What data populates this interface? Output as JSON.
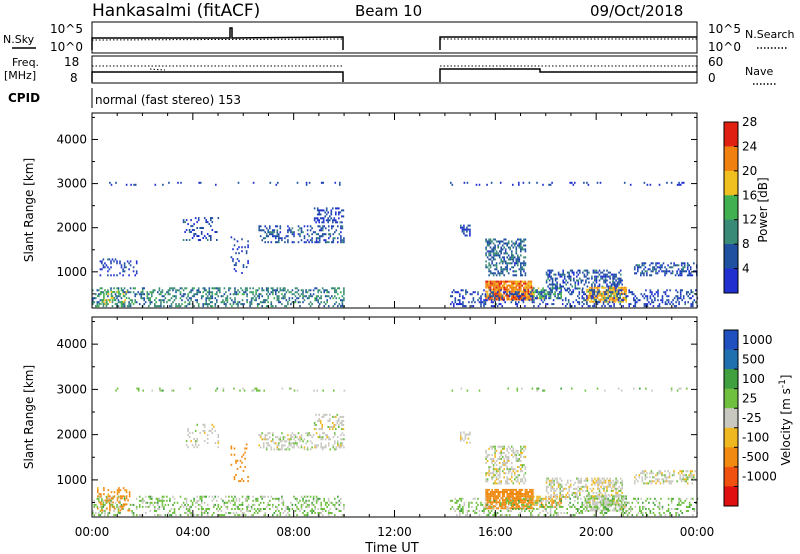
{
  "header": {
    "station": "Hankasalmi (fitACF)",
    "beam": "Beam 10",
    "date": "09/Oct/2018"
  },
  "status_panels": {
    "nsky_label": "N.Sky",
    "nsearch_label": "N.Search",
    "noise_ticks_left": [
      "10^5",
      "10^0"
    ],
    "noise_ticks_right": [
      "10^5",
      "10^0"
    ],
    "freq_label_top": "Freq.",
    "freq_label_bottom": "[MHz]",
    "freq_ticks": [
      "18",
      "8"
    ],
    "nave_label": "Nave",
    "nave_ticks": [
      "60",
      "0"
    ],
    "cpid_label": "CPID",
    "cpid_value": "normal (fast stereo) 153"
  },
  "time_axis": {
    "label": "Time UT",
    "ticks": [
      "00:00",
      "04:00",
      "08:00",
      "12:00",
      "16:00",
      "20:00",
      "00:00"
    ]
  },
  "colors": {
    "power": [
      "#2030d0",
      "#2050a0",
      "#3a8a78",
      "#40b050",
      "#f0c020",
      "#f08010",
      "#e02010"
    ],
    "velocity": [
      "#e01010",
      "#f05010",
      "#f08a10",
      "#f0b820",
      "#c8c8c0",
      "#70c040",
      "#40a040",
      "#2070b0",
      "#2050c0"
    ]
  },
  "chart_data": [
    {
      "type": "heatmap",
      "panel": "power",
      "ylabel": "Slant Range [km]",
      "yticks": [
        1000,
        2000,
        3000,
        4000
      ],
      "ylim": [
        180,
        4600
      ],
      "xlim_hours": [
        0,
        24
      ],
      "colorbar": {
        "label": "Power [dB]",
        "ticks": [
          "4",
          "8",
          "12",
          "16",
          "20",
          "24",
          "28"
        ],
        "range": [
          0,
          30
        ]
      },
      "patches": [
        {
          "t0": 0.0,
          "t1": 10.0,
          "r0": 200,
          "r1": 650,
          "level": 10,
          "density": 0.35
        },
        {
          "t0": 0.2,
          "t1": 1.4,
          "r0": 250,
          "r1": 550,
          "level": 16,
          "density": 0.3
        },
        {
          "t0": 0.3,
          "t1": 1.8,
          "r0": 900,
          "r1": 1300,
          "level": 5,
          "density": 0.25
        },
        {
          "t0": 3.6,
          "t1": 5.0,
          "r0": 1700,
          "r1": 2200,
          "level": 5,
          "density": 0.2
        },
        {
          "t0": 5.5,
          "t1": 6.2,
          "r0": 950,
          "r1": 1800,
          "level": 5,
          "density": 0.15
        },
        {
          "t0": 6.6,
          "t1": 10.0,
          "r0": 1650,
          "r1": 2050,
          "level": 6,
          "density": 0.35
        },
        {
          "t0": 8.8,
          "t1": 10.0,
          "r0": 2100,
          "r1": 2450,
          "level": 5,
          "density": 0.35
        },
        {
          "t0": 0.5,
          "t1": 10.0,
          "r0": 2950,
          "r1": 3020,
          "level": 4,
          "density": 0.12
        },
        {
          "t0": 14.6,
          "t1": 15.0,
          "r0": 1800,
          "r1": 2050,
          "level": 5,
          "density": 0.5
        },
        {
          "t0": 15.6,
          "t1": 17.2,
          "r0": 900,
          "r1": 1750,
          "level": 8,
          "density": 0.45
        },
        {
          "t0": 15.6,
          "t1": 17.5,
          "r0": 350,
          "r1": 800,
          "level": 24,
          "density": 0.85
        },
        {
          "t0": 17.5,
          "t1": 18.6,
          "r0": 380,
          "r1": 650,
          "level": 14,
          "density": 0.6
        },
        {
          "t0": 18.0,
          "t1": 21.0,
          "r0": 600,
          "r1": 1050,
          "level": 6,
          "density": 0.45
        },
        {
          "t0": 19.6,
          "t1": 21.2,
          "r0": 300,
          "r1": 650,
          "level": 20,
          "density": 0.75
        },
        {
          "t0": 21.5,
          "t1": 24.0,
          "r0": 900,
          "r1": 1200,
          "level": 6,
          "density": 0.45
        },
        {
          "t0": 14.2,
          "t1": 24.0,
          "r0": 200,
          "r1": 600,
          "level": 5,
          "density": 0.3
        },
        {
          "t0": 14.2,
          "t1": 24.0,
          "r0": 2950,
          "r1": 3020,
          "level": 4,
          "density": 0.12
        }
      ]
    },
    {
      "type": "heatmap",
      "panel": "velocity",
      "ylabel": "Slant Range [km]",
      "yticks": [
        1000,
        2000,
        3000,
        4000
      ],
      "ylim": [
        180,
        4600
      ],
      "xlim_hours": [
        0,
        24
      ],
      "colorbar": {
        "label": "Velocity [m s^-1]",
        "ticks": [
          "1000",
          "500",
          "100",
          "25",
          "-25",
          "-100",
          "-500",
          "-1000"
        ],
        "range": [
          -1200,
          1200
        ]
      },
      "patches": [
        {
          "t0": 0.0,
          "t1": 10.0,
          "r0": 200,
          "r1": 650,
          "level": 60,
          "density": 0.3
        },
        {
          "t0": 0.2,
          "t1": 1.5,
          "r0": 300,
          "r1": 800,
          "level": -150,
          "density": 0.3
        },
        {
          "t0": 3.6,
          "t1": 5.0,
          "r0": 1700,
          "r1": 2200,
          "level": 0,
          "density": 0.2
        },
        {
          "t0": 5.5,
          "t1": 6.2,
          "r0": 950,
          "r1": 1800,
          "level": -200,
          "density": 0.15
        },
        {
          "t0": 6.6,
          "t1": 10.0,
          "r0": 1650,
          "r1": 2050,
          "level": 0,
          "density": 0.35
        },
        {
          "t0": 8.8,
          "t1": 10.0,
          "r0": 2100,
          "r1": 2450,
          "level": 0,
          "density": 0.35
        },
        {
          "t0": 0.5,
          "t1": 10.0,
          "r0": 2950,
          "r1": 3020,
          "level": 50,
          "density": 0.12
        },
        {
          "t0": 14.6,
          "t1": 15.0,
          "r0": 1800,
          "r1": 2050,
          "level": 0,
          "density": 0.5
        },
        {
          "t0": 15.6,
          "t1": 17.2,
          "r0": 900,
          "r1": 1750,
          "level": 0,
          "density": 0.45
        },
        {
          "t0": 15.6,
          "t1": 17.5,
          "r0": 350,
          "r1": 800,
          "level": -200,
          "density": 0.85
        },
        {
          "t0": 17.5,
          "t1": 18.6,
          "r0": 380,
          "r1": 650,
          "level": -80,
          "density": 0.6
        },
        {
          "t0": 18.0,
          "t1": 21.0,
          "r0": 600,
          "r1": 1050,
          "level": 0,
          "density": 0.45
        },
        {
          "t0": 19.6,
          "t1": 21.2,
          "r0": 300,
          "r1": 650,
          "level": 10,
          "density": 0.7
        },
        {
          "t0": 21.5,
          "t1": 24.0,
          "r0": 900,
          "r1": 1200,
          "level": 0,
          "density": 0.45
        },
        {
          "t0": 14.2,
          "t1": 24.0,
          "r0": 200,
          "r1": 600,
          "level": 60,
          "density": 0.3
        },
        {
          "t0": 14.2,
          "t1": 24.0,
          "r0": 2950,
          "r1": 3020,
          "level": 50,
          "density": 0.12
        }
      ]
    }
  ]
}
